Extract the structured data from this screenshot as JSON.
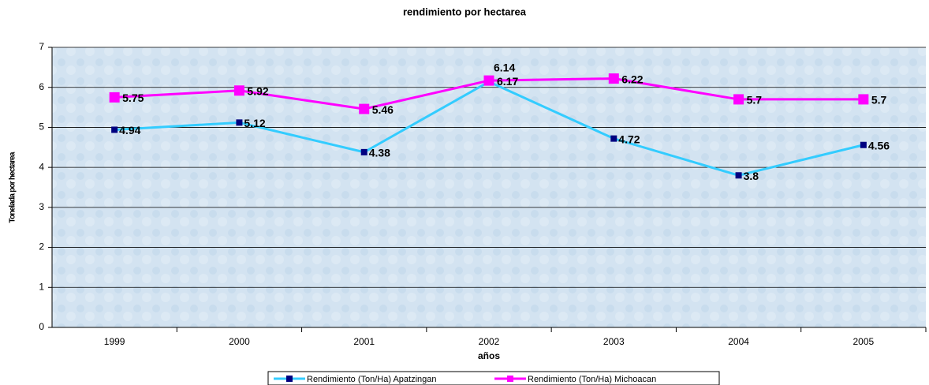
{
  "chart_data": {
    "type": "line",
    "title": "rendimiento por hectarea",
    "x_label": "años",
    "y_label": "Tonelada por hectarea",
    "categories": [
      "1999",
      "2000",
      "2001",
      "2002",
      "2003",
      "2004",
      "2005"
    ],
    "series": [
      {
        "name": "Rendimiento (Ton/Ha) Apatzingan",
        "color": "#33ccff",
        "marker_color": "#000080",
        "values": [
          4.94,
          5.12,
          4.38,
          6.14,
          4.72,
          3.8,
          4.56
        ]
      },
      {
        "name": "Rendimiento (Ton/Ha) Michoacan",
        "color": "#ff00ff",
        "marker_color": "#ff00ff",
        "values": [
          5.75,
          5.92,
          5.46,
          6.17,
          6.22,
          5.7,
          5.7
        ]
      }
    ],
    "ylim": [
      0,
      7
    ],
    "yticks": [
      0,
      1,
      2,
      3,
      4,
      5,
      6,
      7
    ],
    "grid": true
  }
}
